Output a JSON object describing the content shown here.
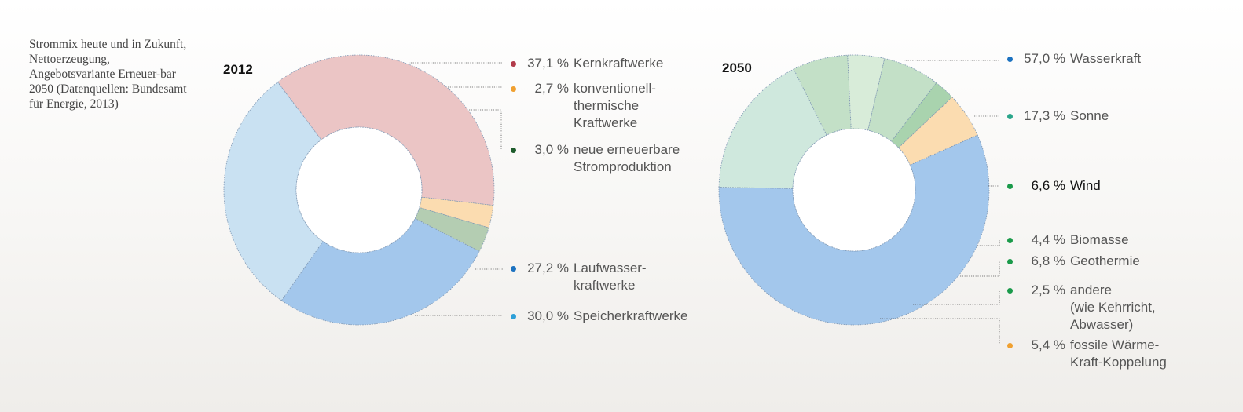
{
  "caption": "Strommix heute und in Zukunft, Nettoerzeugung, Angebotsvariante Erneuer-bar 2050 (Datenquellen: Bundesamt für Energie, 2013)",
  "chart_data": [
    {
      "type": "pie",
      "title": "2012",
      "donut": true,
      "series": [
        {
          "label": "Kernkraftwerke",
          "value": 37.1,
          "value_text": "37,1 %",
          "color": "#ebc5c5",
          "dot": "#b23a4a"
        },
        {
          "label": "konventionell-\nthermische\nKraftwerke",
          "value": 2.7,
          "value_text": "2,7 %",
          "color": "#fbdcb0",
          "dot": "#f0a030"
        },
        {
          "label": "neue erneuerbare\nStromproduktion",
          "value": 3.0,
          "value_text": "3,0 %",
          "color": "#b4cdb2",
          "dot": "#1e5c2c"
        },
        {
          "label": "Laufwasser-\nkraftwerke",
          "value": 27.2,
          "value_text": "27,2 %",
          "color": "#a3c7ec",
          "dot": "#1c72c0"
        },
        {
          "label": "Speicherkraftwerke",
          "value": 30.0,
          "value_text": "30,0 %",
          "color": "#c9e1f2",
          "dot": "#2ea0d8"
        }
      ]
    },
    {
      "type": "pie",
      "title": "2050",
      "donut": true,
      "series": [
        {
          "label": "Wasserkraft",
          "value": 57.0,
          "value_text": "57,0 %",
          "color": "#a3c7ec",
          "dot": "#1c72c0"
        },
        {
          "label": "Sonne",
          "value": 17.3,
          "value_text": "17,3 %",
          "color": "#cfe8dd",
          "dot": "#2aa58a"
        },
        {
          "label": "Wind",
          "value": 6.6,
          "value_text": "6,6 %",
          "color": "#c3e0c7",
          "dot": "#1a9a4a"
        },
        {
          "label": "Biomasse",
          "value": 4.4,
          "value_text": "4,4 %",
          "color": "#d8ecd9",
          "dot": "#1a9a4a"
        },
        {
          "label": "Geothermie",
          "value": 6.8,
          "value_text": "6,8 %",
          "color": "#c3e0c7",
          "dot": "#1a9a4a"
        },
        {
          "label": "andere\n(wie Kehrricht,\nAbwasser)",
          "value": 2.5,
          "value_text": "2,5 %",
          "color": "#a9d3ae",
          "dot": "#1a9a4a"
        },
        {
          "label": "fossile Wärme-\nKraft-Koppelung",
          "value": 5.4,
          "value_text": "5,4 %",
          "color": "#fbdcb0",
          "dot": "#f0a030"
        }
      ]
    }
  ]
}
